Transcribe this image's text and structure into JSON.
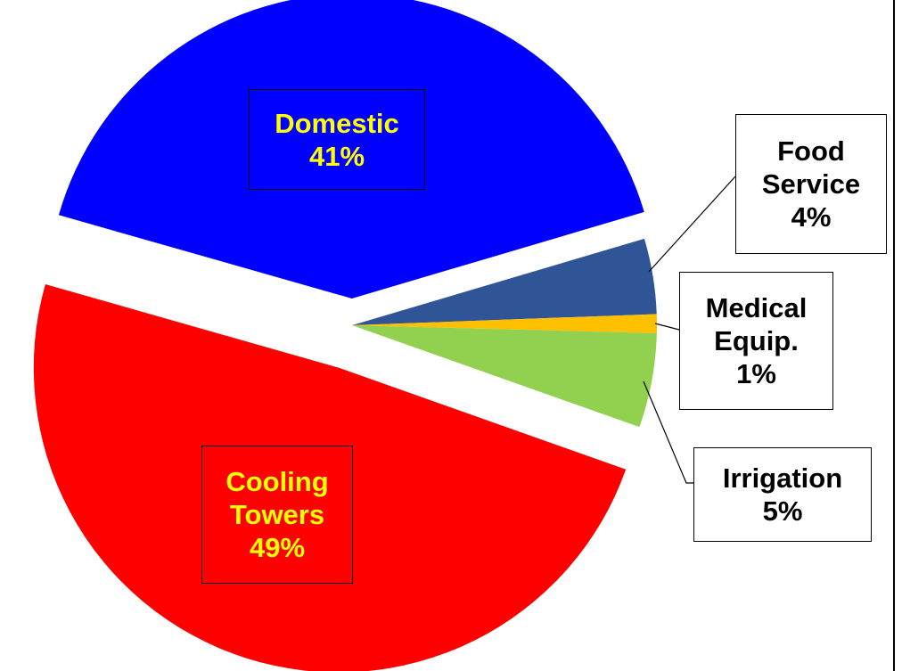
{
  "chart_data": {
    "type": "pie",
    "categories": [
      "Food Service",
      "Medical Equip.",
      "Irrigation",
      "Cooling Towers",
      "Domestic"
    ],
    "values": [
      4,
      1,
      5,
      49,
      41
    ],
    "value_labels": [
      "4%",
      "1%",
      "5%",
      "49%",
      "41%"
    ],
    "colors": [
      "#2f5597",
      "#ffc000",
      "#92d050",
      "#ff0000",
      "#0000ff"
    ]
  }
}
